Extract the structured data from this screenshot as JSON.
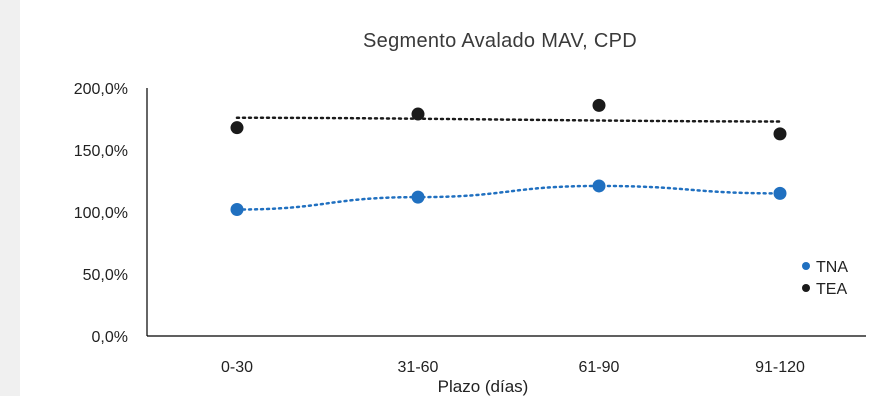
{
  "chart_data": {
    "type": "scatter",
    "title": "Segmento Avalado MAV, CPD",
    "xlabel": "Plazo (días)",
    "ylabel": "",
    "categories": [
      "0-30",
      "31-60",
      "61-90",
      "91-120"
    ],
    "y_ticks": [
      "0,0%",
      "50,0%",
      "100,0%",
      "150,0%",
      "200,0%"
    ],
    "ylim": [
      0,
      200
    ],
    "legend_position": "right",
    "trendlines": "dotted",
    "series": [
      {
        "name": "TNA",
        "color": "#2070c0",
        "values": [
          102,
          112,
          121,
          115
        ]
      },
      {
        "name": "TEA",
        "color": "#1a1a1a",
        "values": [
          168,
          179,
          186,
          163
        ]
      }
    ]
  }
}
